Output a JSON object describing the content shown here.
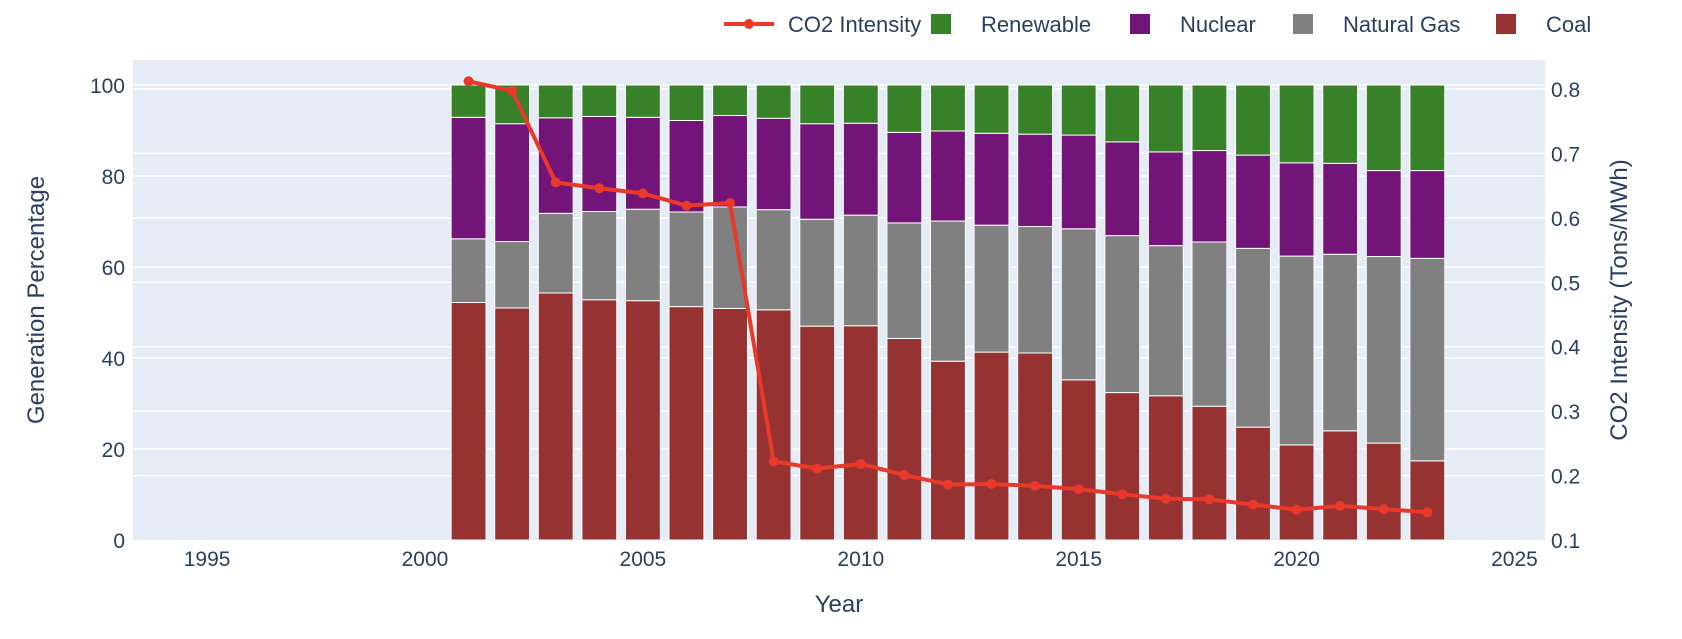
{
  "chart_data": {
    "type": "bar",
    "barmode": "stack",
    "xlabel": "Year",
    "ylabel": "Generation Percentage",
    "y2label": "CO2 Intensity (Tons/MWh)",
    "xlim": [
      1993.3,
      2025.7
    ],
    "ylim": [
      0,
      105.5
    ],
    "y2lim": [
      0.1,
      0.845
    ],
    "xticks": [
      1995,
      2000,
      2005,
      2010,
      2015,
      2020,
      2025
    ],
    "yticks": [
      0,
      20,
      40,
      60,
      80,
      100
    ],
    "y2ticks": [
      0.1,
      0.2,
      0.3,
      0.4,
      0.5,
      0.6,
      0.7,
      0.8
    ],
    "grid": true,
    "legend_position": "top-right",
    "plot_background": "#e5ecf6",
    "x": [
      2001,
      2002,
      2003,
      2004,
      2005,
      2006,
      2007,
      2008,
      2009,
      2010,
      2011,
      2012,
      2013,
      2014,
      2015,
      2016,
      2017,
      2018,
      2019,
      2020,
      2021,
      2022,
      2023
    ],
    "series": [
      {
        "name": "Coal",
        "color": "#963232",
        "values": [
          52.2,
          51.0,
          54.3,
          52.8,
          52.6,
          51.3,
          50.9,
          50.6,
          47.0,
          47.1,
          44.3,
          39.3,
          41.3,
          41.1,
          35.2,
          32.4,
          31.7,
          29.4,
          24.8,
          20.9,
          24.0,
          21.3,
          17.4
        ]
      },
      {
        "name": "Natural Gas",
        "color": "#808080",
        "values": [
          14.0,
          14.6,
          17.5,
          19.4,
          20.1,
          20.8,
          22.3,
          22.0,
          23.5,
          24.3,
          25.4,
          30.8,
          27.9,
          27.8,
          33.2,
          34.5,
          33.0,
          36.1,
          39.3,
          41.5,
          38.8,
          41.0,
          44.5
        ]
      },
      {
        "name": "Nuclear",
        "color": "#731478",
        "values": [
          26.7,
          25.9,
          21.0,
          20.9,
          20.2,
          20.1,
          20.1,
          20.1,
          21.0,
          20.2,
          19.9,
          19.8,
          20.2,
          20.3,
          20.6,
          20.6,
          20.6,
          20.1,
          20.5,
          20.5,
          20.0,
          18.9,
          19.3
        ]
      },
      {
        "name": "Renewable",
        "color": "#378228",
        "values": [
          7.1,
          8.5,
          7.2,
          6.9,
          7.1,
          7.8,
          6.7,
          7.3,
          8.5,
          8.4,
          10.4,
          10.1,
          10.6,
          10.8,
          11.0,
          12.5,
          14.7,
          14.4,
          15.4,
          17.1,
          17.2,
          18.8,
          18.8
        ]
      }
    ],
    "line_series": {
      "name": "CO2 Intensity",
      "color": "#e8392a",
      "axis": "y2",
      "values": [
        0.812,
        0.797,
        0.655,
        0.646,
        0.638,
        0.619,
        0.623,
        0.222,
        0.211,
        0.218,
        0.201,
        0.186,
        0.187,
        0.184,
        0.179,
        0.171,
        0.164,
        0.163,
        0.155,
        0.147,
        0.153,
        0.148,
        0.143
      ]
    },
    "legend": [
      "CO2 Intensity",
      "Renewable",
      "Nuclear",
      "Natural Gas",
      "Coal"
    ]
  }
}
